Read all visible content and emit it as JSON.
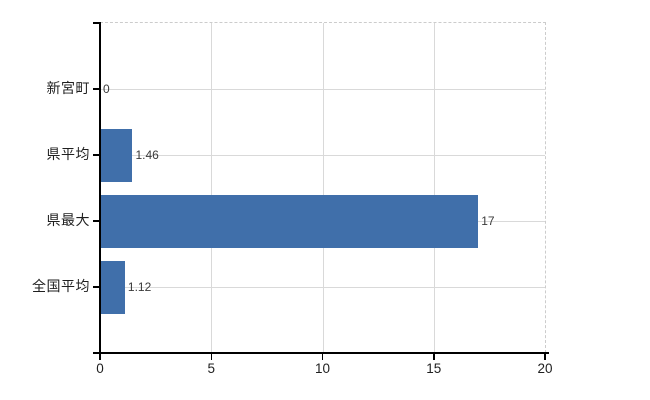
{
  "chart_data": {
    "type": "bar",
    "orientation": "horizontal",
    "title": "",
    "categories": [
      "新宮町",
      "県平均",
      "県最大",
      "全国平均"
    ],
    "values": [
      0,
      1.46,
      17,
      1.12
    ],
    "value_labels": [
      "0",
      "1.46",
      "17",
      "1.12"
    ],
    "xlim": [
      0,
      20
    ],
    "x_ticks": [
      0,
      5,
      10,
      15,
      20
    ],
    "x_tick_labels": [
      "0",
      "5",
      "10",
      "15",
      "20"
    ],
    "grid": true,
    "legend": false,
    "colors": {
      "bar": "#406faa",
      "gridline": "#d9d9d9",
      "frame_dashed": "#cccccc",
      "axis": "#000000",
      "label_text": "#1f1f1f",
      "value_text": "#3a3a3a",
      "background": "#ffffff"
    }
  }
}
